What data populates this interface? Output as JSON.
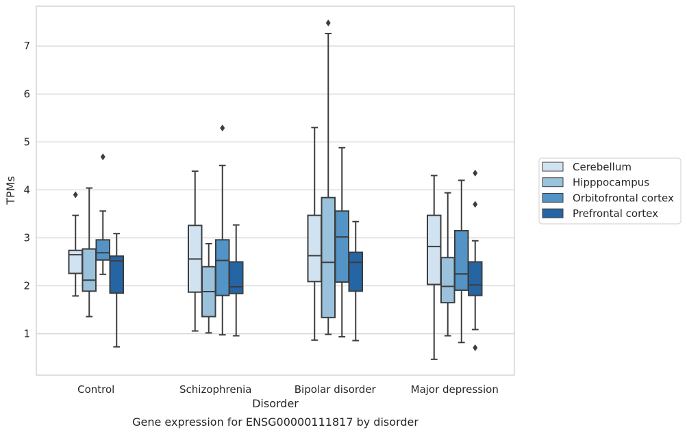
{
  "chart_data": {
    "type": "box",
    "caption": "Gene expression for ENSG00000111817 by disorder",
    "xlabel": "Disorder",
    "ylabel": "TPMs",
    "ylim": [
      0.14,
      7.83
    ],
    "yticks": [
      1,
      2,
      3,
      4,
      5,
      6,
      7
    ],
    "grid": "horizontal",
    "legend_position": "right",
    "categories": [
      "Control",
      "Schizophrenia",
      "Bipolar disorder",
      "Major depression"
    ],
    "series": [
      {
        "name": "Cerebellum",
        "color": "#d1e2f1",
        "boxes": [
          {
            "whislo": 1.79,
            "q1": 2.26,
            "med": 2.65,
            "q3": 2.74,
            "whishi": 3.47,
            "fliers": [
              3.9
            ]
          },
          {
            "whislo": 1.06,
            "q1": 1.87,
            "med": 2.56,
            "q3": 3.26,
            "whishi": 4.39,
            "fliers": []
          },
          {
            "whislo": 0.87,
            "q1": 2.09,
            "med": 2.63,
            "q3": 3.47,
            "whishi": 5.3,
            "fliers": []
          },
          {
            "whislo": 0.47,
            "q1": 2.03,
            "med": 2.82,
            "q3": 3.47,
            "whishi": 4.3,
            "fliers": []
          }
        ]
      },
      {
        "name": "Hipppocampus",
        "color": "#9ac2dc",
        "boxes": [
          {
            "whislo": 1.36,
            "q1": 1.89,
            "med": 2.12,
            "q3": 2.77,
            "whishi": 4.04,
            "fliers": []
          },
          {
            "whislo": 1.02,
            "q1": 1.36,
            "med": 1.88,
            "q3": 2.4,
            "whishi": 2.88,
            "fliers": []
          },
          {
            "whislo": 0.99,
            "q1": 1.34,
            "med": 2.49,
            "q3": 3.84,
            "whishi": 7.26,
            "fliers": [
              7.48
            ]
          },
          {
            "whislo": 0.96,
            "q1": 1.65,
            "med": 1.99,
            "q3": 2.59,
            "whishi": 3.94,
            "fliers": []
          }
        ]
      },
      {
        "name": "Orbitofrontal cortex",
        "color": "#5393c5",
        "boxes": [
          {
            "whislo": 2.24,
            "q1": 2.54,
            "med": 2.69,
            "q3": 2.96,
            "whishi": 3.56,
            "fliers": [
              4.69
            ]
          },
          {
            "whislo": 0.98,
            "q1": 1.8,
            "med": 2.53,
            "q3": 2.96,
            "whishi": 4.51,
            "fliers": [
              5.29
            ]
          },
          {
            "whislo": 0.94,
            "q1": 2.08,
            "med": 3.02,
            "q3": 3.56,
            "whishi": 4.88,
            "fliers": []
          },
          {
            "whislo": 0.82,
            "q1": 1.91,
            "med": 2.25,
            "q3": 3.15,
            "whishi": 4.2,
            "fliers": []
          }
        ]
      },
      {
        "name": "Prefrontal cortex",
        "color": "#2565a4",
        "boxes": [
          {
            "whislo": 0.73,
            "q1": 1.85,
            "med": 2.52,
            "q3": 2.62,
            "whishi": 3.09,
            "fliers": []
          },
          {
            "whislo": 0.96,
            "q1": 1.84,
            "med": 1.98,
            "q3": 2.5,
            "whishi": 3.27,
            "fliers": []
          },
          {
            "whislo": 0.86,
            "q1": 1.89,
            "med": 2.49,
            "q3": 2.7,
            "whishi": 3.34,
            "fliers": []
          },
          {
            "whislo": 1.09,
            "q1": 1.8,
            "med": 2.02,
            "q3": 2.5,
            "whishi": 2.94,
            "fliers": [
              0.71,
              3.7,
              4.35
            ]
          }
        ]
      }
    ]
  }
}
